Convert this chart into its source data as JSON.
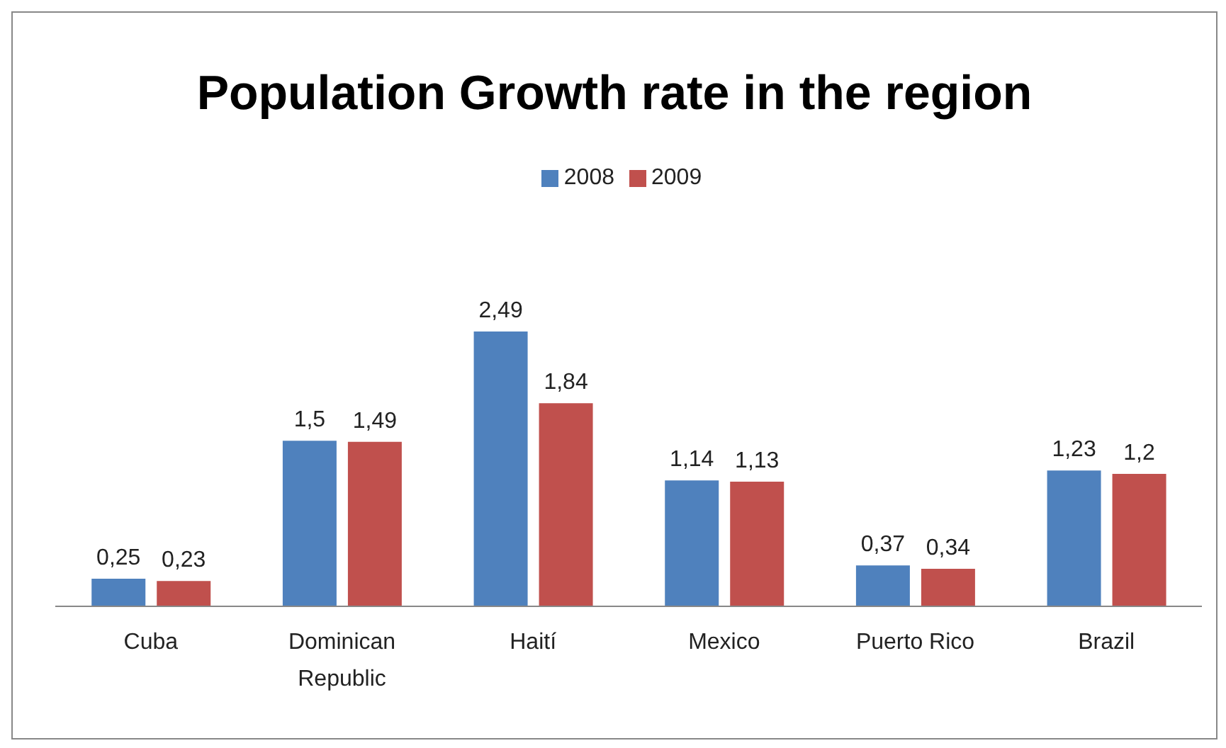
{
  "chart_data": {
    "type": "bar",
    "title": "Population Growth rate in the region",
    "categories": [
      "Cuba",
      "Dominican Republic",
      "Haití",
      "Mexico",
      "Puerto Rico",
      "Brazil"
    ],
    "series": [
      {
        "name": "2008",
        "color": "#4f81bd",
        "values": [
          0.25,
          1.5,
          2.49,
          1.14,
          0.37,
          1.23
        ],
        "value_labels": [
          "0,25",
          "1,5",
          "2,49",
          "1,14",
          "0,37",
          "1,23"
        ]
      },
      {
        "name": "2009",
        "color": "#c0504d",
        "values": [
          0.23,
          1.49,
          1.84,
          1.13,
          0.34,
          1.2
        ],
        "value_labels": [
          "0,23",
          "1,49",
          "1,84",
          "1,13",
          "0,34",
          "1,2"
        ]
      }
    ],
    "legend": "top",
    "grid": false
  }
}
